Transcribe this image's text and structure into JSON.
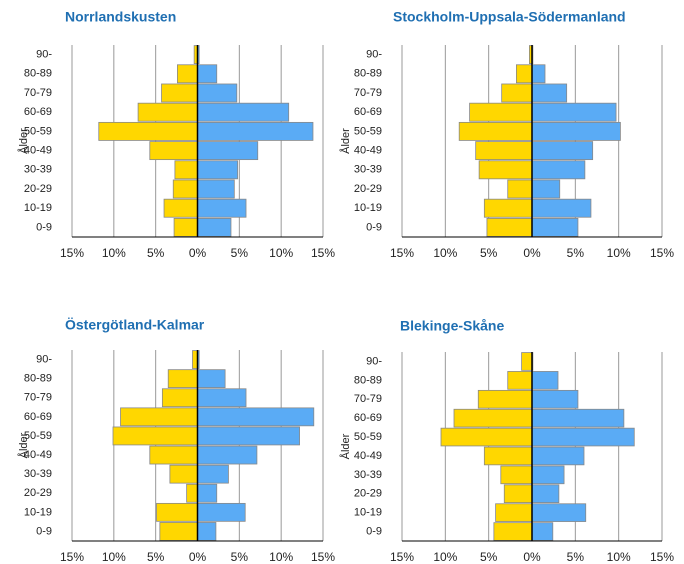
{
  "chart_data": [
    {
      "type": "pyramid",
      "title": "Norrlandskusten",
      "y_label": "Ålder",
      "categories": [
        "0-9",
        "10-19",
        "20-29",
        "30-39",
        "40-49",
        "50-59",
        "60-69",
        "70-79",
        "80-89",
        "90-"
      ],
      "series": [
        {
          "color": "#ffd700",
          "values": [
            -2.8,
            -4.0,
            -2.9,
            -2.7,
            -5.7,
            -11.8,
            -7.1,
            -4.3,
            -2.4,
            -0.4
          ]
        },
        {
          "color": "#5aabf5",
          "values": [
            4.0,
            5.8,
            4.4,
            4.8,
            7.2,
            13.8,
            10.9,
            4.7,
            2.3,
            0.2
          ]
        }
      ],
      "xlim": [
        -15,
        15
      ],
      "xticks": [
        {
          "value": -15,
          "label": "15%"
        },
        {
          "value": -10,
          "label": "10%"
        },
        {
          "value": -5,
          "label": "5%"
        },
        {
          "value": 0,
          "label": "0%"
        },
        {
          "value": 5,
          "label": "5%"
        },
        {
          "value": 10,
          "label": "10%"
        },
        {
          "value": 15,
          "label": "15%"
        }
      ],
      "grid": true
    },
    {
      "type": "pyramid",
      "title": "Stockholm-Uppsala-Södermanland",
      "y_label": "Ålder",
      "categories": [
        "0-9",
        "10-19",
        "20-29",
        "30-39",
        "40-49",
        "50-59",
        "60-69",
        "70-79",
        "80-89",
        "90-"
      ],
      "series": [
        {
          "color": "#ffd700",
          "values": [
            -5.2,
            -5.5,
            -2.8,
            -6.1,
            -6.5,
            -8.4,
            -7.2,
            -3.5,
            -1.8,
            -0.3
          ]
        },
        {
          "color": "#5aabf5",
          "values": [
            5.3,
            6.8,
            3.2,
            6.1,
            7.0,
            10.2,
            9.7,
            4.0,
            1.5,
            0.1
          ]
        }
      ],
      "xlim": [
        -15,
        15
      ],
      "xticks": [
        {
          "value": -15,
          "label": "15%"
        },
        {
          "value": -10,
          "label": "10%"
        },
        {
          "value": -5,
          "label": "5%"
        },
        {
          "value": 0,
          "label": "0%"
        },
        {
          "value": 5,
          "label": "5%"
        },
        {
          "value": 10,
          "label": "10%"
        },
        {
          "value": 15,
          "label": "15%"
        }
      ],
      "grid": true
    },
    {
      "type": "pyramid",
      "title": "Östergötland-Kalmar",
      "y_label": "Ålder",
      "categories": [
        "0-9",
        "10-19",
        "20-29",
        "30-39",
        "40-49",
        "50-59",
        "60-69",
        "70-79",
        "80-89",
        "90-"
      ],
      "series": [
        {
          "color": "#ffd700",
          "values": [
            -4.5,
            -4.9,
            -1.3,
            -3.3,
            -5.7,
            -10.1,
            -9.2,
            -4.2,
            -3.5,
            -0.6
          ]
        },
        {
          "color": "#5aabf5",
          "values": [
            2.2,
            5.7,
            2.3,
            3.7,
            7.1,
            12.2,
            13.9,
            5.8,
            3.3,
            0.2
          ]
        }
      ],
      "xlim": [
        -15,
        15
      ],
      "xticks": [
        {
          "value": -15,
          "label": "15%"
        },
        {
          "value": -10,
          "label": "10%"
        },
        {
          "value": -5,
          "label": "5%"
        },
        {
          "value": 0,
          "label": "0%"
        },
        {
          "value": 5,
          "label": "5%"
        },
        {
          "value": 10,
          "label": "10%"
        },
        {
          "value": 15,
          "label": "15%"
        }
      ],
      "grid": true
    },
    {
      "type": "pyramid",
      "title": "Blekinge-Skåne",
      "y_label": "Ålder",
      "categories": [
        "0-9",
        "10-19",
        "20-29",
        "30-39",
        "40-49",
        "50-59",
        "60-69",
        "70-79",
        "80-89",
        "90-"
      ],
      "series": [
        {
          "color": "#ffd700",
          "values": [
            -4.4,
            -4.2,
            -3.2,
            -3.6,
            -5.5,
            -10.5,
            -9.0,
            -6.2,
            -2.8,
            -1.2
          ]
        },
        {
          "color": "#5aabf5",
          "values": [
            2.4,
            6.2,
            3.1,
            3.7,
            6.0,
            11.8,
            10.6,
            5.3,
            3.0,
            0.1
          ]
        }
      ],
      "xlim": [
        -15,
        15
      ],
      "xticks": [
        {
          "value": -15,
          "label": "15%"
        },
        {
          "value": -10,
          "label": "10%"
        },
        {
          "value": -5,
          "label": "5%"
        },
        {
          "value": 0,
          "label": "0%"
        },
        {
          "value": 5,
          "label": "5%"
        },
        {
          "value": 10,
          "label": "10%"
        },
        {
          "value": 15,
          "label": "15%"
        }
      ],
      "grid": true
    }
  ]
}
